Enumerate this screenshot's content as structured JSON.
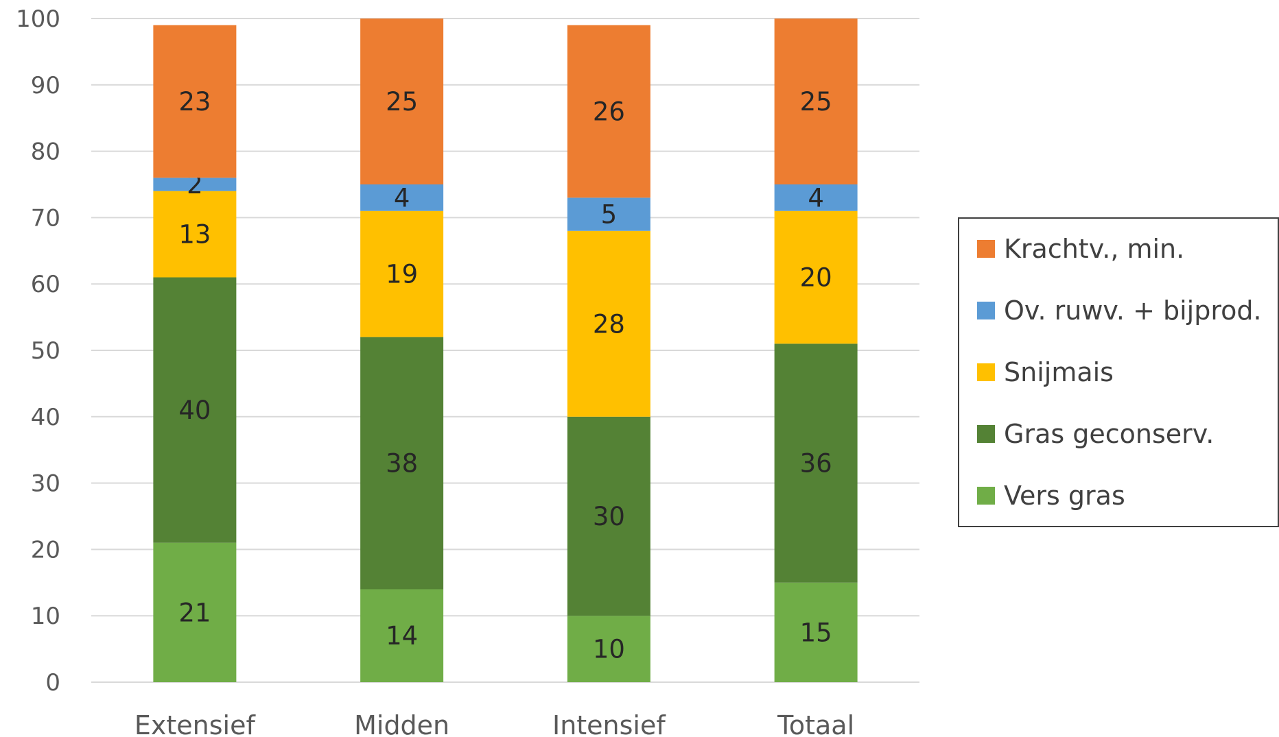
{
  "chart_data": {
    "type": "bar",
    "stacked": true,
    "categories": [
      "Extensief",
      "Midden",
      "Intensief",
      "Totaal"
    ],
    "ylim": [
      0,
      100
    ],
    "yticks": [
      0,
      10,
      20,
      30,
      40,
      50,
      60,
      70,
      80,
      90,
      100
    ],
    "grid": true,
    "legend_position": "right",
    "series": [
      {
        "name": "Vers gras",
        "color": "#70AD47",
        "values": [
          21,
          14,
          10,
          15
        ]
      },
      {
        "name": "Gras geconserv.",
        "color": "#548235",
        "values": [
          40,
          38,
          30,
          36
        ]
      },
      {
        "name": "Snijmais",
        "color": "#FFC000",
        "values": [
          13,
          19,
          28,
          20
        ]
      },
      {
        "name": "Ov. ruwv. + bijprod.",
        "color": "#5B9BD5",
        "values": [
          2,
          4,
          5,
          4
        ]
      },
      {
        "name": "Krachtv., min.",
        "color": "#ED7D31",
        "values": [
          23,
          25,
          26,
          25
        ]
      }
    ],
    "legend_order": [
      "Krachtv., min.",
      "Ov. ruwv. + bijprod.",
      "Snijmais",
      "Gras geconserv.",
      "Vers gras"
    ]
  }
}
